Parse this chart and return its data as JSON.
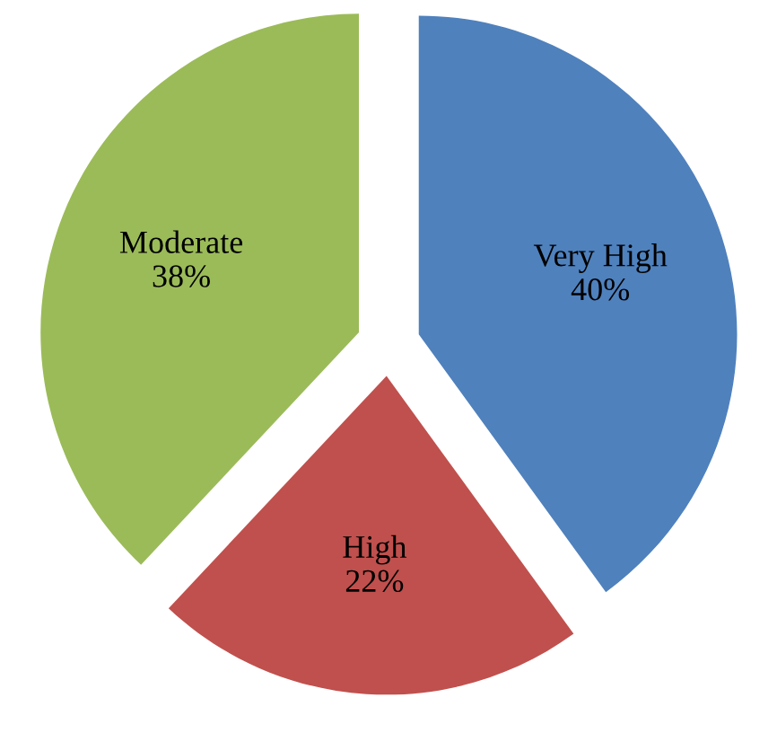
{
  "chart_data": {
    "type": "pie",
    "categories": [
      "Very High",
      "High",
      "Moderate"
    ],
    "values": [
      40,
      22,
      38
    ],
    "value_labels": [
      "40%",
      "22%",
      "38%"
    ],
    "colors": [
      "#4f81bd",
      "#c0504d",
      "#9bbb59"
    ],
    "legend": false
  }
}
